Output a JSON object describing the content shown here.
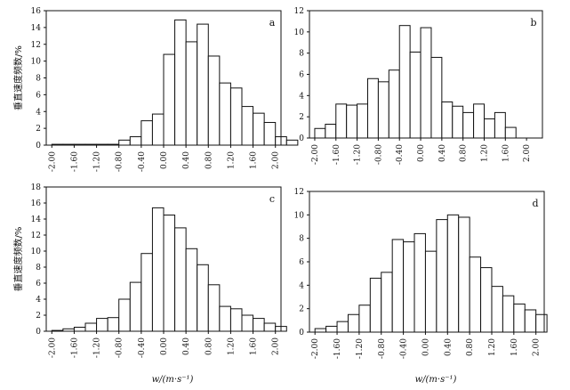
{
  "chart_data": [
    {
      "type": "bar",
      "panel_label": "a",
      "ylabel": "垂直速度频数/%",
      "xlabel": "",
      "ylim": [
        0,
        16
      ],
      "yticks": [
        0,
        2,
        4,
        6,
        8,
        10,
        12,
        14,
        16
      ],
      "xticks": [
        "-2.00",
        "-1.60",
        "-1.20",
        "-0.80",
        "-0.40",
        "0.00",
        "0.40",
        "0.80",
        "1.20",
        "1.60",
        "2.00"
      ],
      "bin_start": -2.0,
      "bin_width": 0.2,
      "values": [
        0.1,
        0.1,
        0.1,
        0.1,
        0.1,
        0.1,
        0.6,
        1.0,
        2.9,
        3.7,
        10.8,
        14.9,
        12.3,
        14.4,
        10.6,
        7.4,
        6.8,
        4.6,
        3.8,
        2.7,
        1.0,
        0.6
      ]
    },
    {
      "type": "bar",
      "panel_label": "b",
      "ylabel": "",
      "xlabel": "",
      "ylim": [
        0,
        12
      ],
      "yticks": [
        0,
        2,
        4,
        6,
        8,
        10,
        12
      ],
      "xticks": [
        "-2.00",
        "-1.60",
        "-1.20",
        "-0.80",
        "-0.40",
        "0.00",
        "0.40",
        "0.80",
        "1.20",
        "1.60",
        "2.00"
      ],
      "bin_start": -2.0,
      "bin_width": 0.2,
      "values": [
        0.9,
        1.3,
        3.2,
        3.1,
        3.2,
        5.6,
        5.3,
        6.4,
        10.6,
        8.1,
        10.4,
        7.6,
        3.4,
        3.0,
        2.4,
        3.2,
        1.8,
        2.4,
        1.0
      ]
    },
    {
      "type": "bar",
      "panel_label": "c",
      "ylabel": "垂直速度频数/%",
      "xlabel": "w/(m·s⁻¹)",
      "ylim": [
        0,
        18
      ],
      "yticks": [
        0,
        2,
        4,
        6,
        8,
        10,
        12,
        14,
        16,
        18
      ],
      "xticks": [
        "-2.00",
        "-1.60",
        "-1.20",
        "-0.80",
        "-0.40",
        "0.00",
        "0.40",
        "0.80",
        "1.20",
        "1.60",
        "2.00"
      ],
      "bin_start": -2.0,
      "bin_width": 0.2,
      "values": [
        0.1,
        0.3,
        0.5,
        1.0,
        1.6,
        1.7,
        4.0,
        6.1,
        9.7,
        15.4,
        14.5,
        12.9,
        10.3,
        8.3,
        5.8,
        3.1,
        2.8,
        2.0,
        1.6,
        1.0,
        0.6
      ]
    },
    {
      "type": "bar",
      "panel_label": "d",
      "ylabel": "",
      "xlabel": "w/(m·s⁻¹)",
      "ylim": [
        0,
        12
      ],
      "yticks": [
        0,
        2,
        4,
        6,
        8,
        10,
        12
      ],
      "xticks": [
        "-2.00",
        "-1.60",
        "-1.20",
        "-0.80",
        "-0.40",
        "0.00",
        "0.40",
        "0.80",
        "1.20",
        "1.60",
        "2.00"
      ],
      "bin_start": -2.0,
      "bin_width": 0.2,
      "values": [
        0.3,
        0.5,
        0.9,
        1.5,
        2.3,
        4.6,
        5.1,
        7.9,
        7.7,
        8.4,
        6.9,
        9.6,
        10.0,
        9.8,
        6.4,
        5.5,
        3.9,
        3.1,
        2.4,
        1.9,
        1.5
      ]
    }
  ]
}
